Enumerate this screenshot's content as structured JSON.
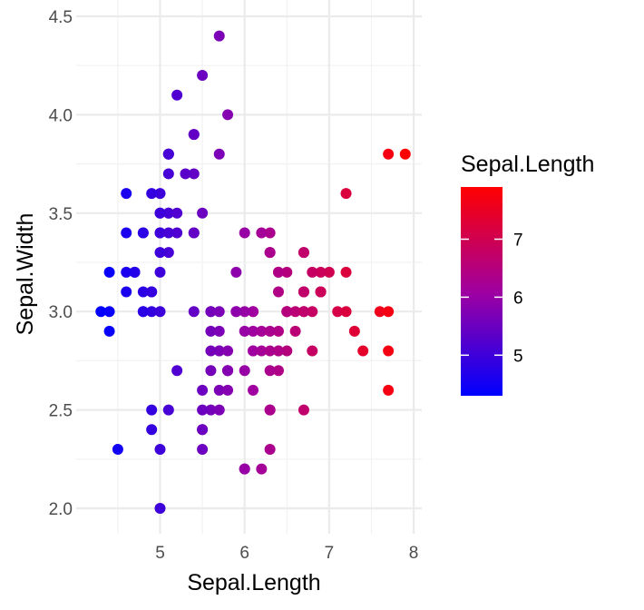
{
  "chart_data": {
    "type": "scatter",
    "xlabel": "Sepal.Length",
    "ylabel": "Sepal.Width",
    "xlim": [
      4.3,
      7.9
    ],
    "ylim": [
      2.0,
      4.4
    ],
    "x_ticks": [
      "5",
      "6",
      "7",
      "8"
    ],
    "y_ticks": [
      "2.0",
      "2.5",
      "3.0",
      "3.5",
      "4.0",
      "4.5"
    ],
    "grid": true,
    "legend": {
      "title": "Sepal.Length",
      "placement": "right",
      "labels": [
        "5",
        "6",
        "7"
      ],
      "color_low": "#0000ff",
      "color_high": "#ff0000",
      "range": [
        4.3,
        7.9
      ]
    },
    "points": [
      [
        5.1,
        3.5
      ],
      [
        4.9,
        3.0
      ],
      [
        4.7,
        3.2
      ],
      [
        4.6,
        3.1
      ],
      [
        5.0,
        3.6
      ],
      [
        5.4,
        3.9
      ],
      [
        4.6,
        3.4
      ],
      [
        5.0,
        3.4
      ],
      [
        4.4,
        2.9
      ],
      [
        4.9,
        3.1
      ],
      [
        5.4,
        3.7
      ],
      [
        4.8,
        3.4
      ],
      [
        4.8,
        3.0
      ],
      [
        4.3,
        3.0
      ],
      [
        5.8,
        4.0
      ],
      [
        5.7,
        4.4
      ],
      [
        5.4,
        3.9
      ],
      [
        5.1,
        3.5
      ],
      [
        5.7,
        3.8
      ],
      [
        5.1,
        3.8
      ],
      [
        5.4,
        3.4
      ],
      [
        5.1,
        3.7
      ],
      [
        4.6,
        3.6
      ],
      [
        5.1,
        3.3
      ],
      [
        4.8,
        3.4
      ],
      [
        5.0,
        3.0
      ],
      [
        5.0,
        3.4
      ],
      [
        5.2,
        3.5
      ],
      [
        5.2,
        3.4
      ],
      [
        4.7,
        3.2
      ],
      [
        4.8,
        3.1
      ],
      [
        5.4,
        3.4
      ],
      [
        5.2,
        4.1
      ],
      [
        5.5,
        4.2
      ],
      [
        4.9,
        3.1
      ],
      [
        5.0,
        3.2
      ],
      [
        5.5,
        3.5
      ],
      [
        4.9,
        3.6
      ],
      [
        4.4,
        3.0
      ],
      [
        5.1,
        3.4
      ],
      [
        5.0,
        3.5
      ],
      [
        4.5,
        2.3
      ],
      [
        4.4,
        3.2
      ],
      [
        5.0,
        3.5
      ],
      [
        5.1,
        3.8
      ],
      [
        4.8,
        3.0
      ],
      [
        5.1,
        3.8
      ],
      [
        4.6,
        3.2
      ],
      [
        5.3,
        3.7
      ],
      [
        5.0,
        3.3
      ],
      [
        7.0,
        3.2
      ],
      [
        6.4,
        3.2
      ],
      [
        6.9,
        3.1
      ],
      [
        5.5,
        2.3
      ],
      [
        6.5,
        2.8
      ],
      [
        5.7,
        2.8
      ],
      [
        6.3,
        3.3
      ],
      [
        4.9,
        2.4
      ],
      [
        6.6,
        2.9
      ],
      [
        5.2,
        2.7
      ],
      [
        5.0,
        2.0
      ],
      [
        5.9,
        3.0
      ],
      [
        6.0,
        2.2
      ],
      [
        6.1,
        2.9
      ],
      [
        5.6,
        2.9
      ],
      [
        6.7,
        3.1
      ],
      [
        5.6,
        3.0
      ],
      [
        5.8,
        2.7
      ],
      [
        6.2,
        2.2
      ],
      [
        5.6,
        2.5
      ],
      [
        5.9,
        3.2
      ],
      [
        6.1,
        2.8
      ],
      [
        6.3,
        2.5
      ],
      [
        6.1,
        2.8
      ],
      [
        6.4,
        2.9
      ],
      [
        6.6,
        3.0
      ],
      [
        6.8,
        2.8
      ],
      [
        6.7,
        3.0
      ],
      [
        6.0,
        2.9
      ],
      [
        5.7,
        2.6
      ],
      [
        5.5,
        2.4
      ],
      [
        5.5,
        2.4
      ],
      [
        5.8,
        2.7
      ],
      [
        6.0,
        2.7
      ],
      [
        5.4,
        3.0
      ],
      [
        6.0,
        3.4
      ],
      [
        6.7,
        3.1
      ],
      [
        6.3,
        2.3
      ],
      [
        5.6,
        3.0
      ],
      [
        5.5,
        2.5
      ],
      [
        5.5,
        2.6
      ],
      [
        6.1,
        3.0
      ],
      [
        5.8,
        2.6
      ],
      [
        5.0,
        2.3
      ],
      [
        5.6,
        2.7
      ],
      [
        5.7,
        3.0
      ],
      [
        5.7,
        2.9
      ],
      [
        6.2,
        2.9
      ],
      [
        5.1,
        2.5
      ],
      [
        5.7,
        2.8
      ],
      [
        6.3,
        3.3
      ],
      [
        5.8,
        2.7
      ],
      [
        7.1,
        3.0
      ],
      [
        6.3,
        2.9
      ],
      [
        6.5,
        3.0
      ],
      [
        7.6,
        3.0
      ],
      [
        4.9,
        2.5
      ],
      [
        7.3,
        2.9
      ],
      [
        6.7,
        2.5
      ],
      [
        7.2,
        3.6
      ],
      [
        6.5,
        3.2
      ],
      [
        6.4,
        2.7
      ],
      [
        6.8,
        3.0
      ],
      [
        5.7,
        2.5
      ],
      [
        5.8,
        2.8
      ],
      [
        6.4,
        3.2
      ],
      [
        6.5,
        3.0
      ],
      [
        7.7,
        3.8
      ],
      [
        7.7,
        2.6
      ],
      [
        6.0,
        2.2
      ],
      [
        6.9,
        3.2
      ],
      [
        5.6,
        2.8
      ],
      [
        7.7,
        2.8
      ],
      [
        6.3,
        2.7
      ],
      [
        6.7,
        3.3
      ],
      [
        7.2,
        3.2
      ],
      [
        6.2,
        2.8
      ],
      [
        6.1,
        3.0
      ],
      [
        6.4,
        2.8
      ],
      [
        7.2,
        3.0
      ],
      [
        7.4,
        2.8
      ],
      [
        7.9,
        3.8
      ],
      [
        6.4,
        2.8
      ],
      [
        6.3,
        2.8
      ],
      [
        6.1,
        2.6
      ],
      [
        7.7,
        3.0
      ],
      [
        6.3,
        3.4
      ],
      [
        6.4,
        3.1
      ],
      [
        6.0,
        3.0
      ],
      [
        6.9,
        3.1
      ],
      [
        6.7,
        3.1
      ],
      [
        6.9,
        3.1
      ],
      [
        5.8,
        2.7
      ],
      [
        6.8,
        3.2
      ],
      [
        6.7,
        3.3
      ],
      [
        6.7,
        3.0
      ],
      [
        6.3,
        2.5
      ],
      [
        6.5,
        3.0
      ],
      [
        6.2,
        3.4
      ],
      [
        5.9,
        3.0
      ]
    ]
  }
}
